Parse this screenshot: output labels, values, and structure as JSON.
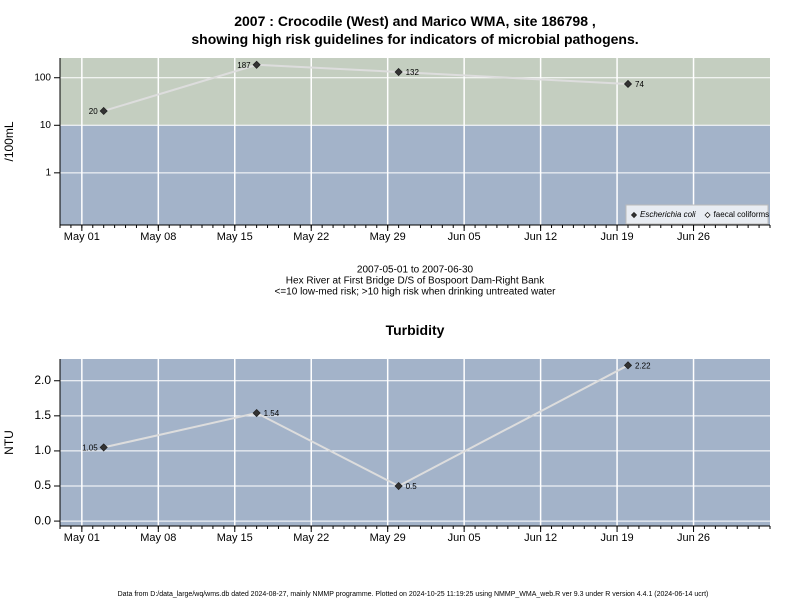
{
  "chart_data": [
    {
      "type": "line",
      "title": "2007 : Crocodile (West) and Marico WMA, site 186798 ,\nshowing high risk guidelines for indicators of microbial pathogens.",
      "ylabel": "/100mL",
      "log": true,
      "grid": true,
      "threshold": 10,
      "high_risk_color": "#c4cec0",
      "low_risk_color": "#a3b3c9",
      "notes": [
        "2007-05-01 to 2007-06-30",
        "Hex River at First Bridge D/S of Bospoort Dam-Right Bank",
        "<=10 low-med risk; >10 high risk when drinking untreated water"
      ],
      "x": [
        "2007-05-03",
        "2007-05-17",
        "2007-05-30",
        "2007-06-20"
      ],
      "xlim": [
        "2007-04-29",
        "2007-07-03"
      ],
      "xticks": [
        {
          "value": "2007-05-01",
          "label": "May 01"
        },
        {
          "value": "2007-05-08",
          "label": "May 08"
        },
        {
          "value": "2007-05-15",
          "label": "May 15"
        },
        {
          "value": "2007-05-22",
          "label": "May 22"
        },
        {
          "value": "2007-05-29",
          "label": "May 29"
        },
        {
          "value": "2007-06-05",
          "label": "Jun 05"
        },
        {
          "value": "2007-06-12",
          "label": "Jun 12"
        },
        {
          "value": "2007-06-19",
          "label": "Jun 19"
        },
        {
          "value": "2007-06-26",
          "label": "Jun 26"
        }
      ],
      "ylim": [
        0.08,
        260
      ],
      "yticks": [
        1,
        10,
        100
      ],
      "legend": "bottom right",
      "series": [
        {
          "name": "Escherichia coli",
          "color": "#333333",
          "line_color": "#dddddd",
          "values": [
            20,
            187,
            132,
            74
          ]
        },
        {
          "name": "faecal coliforms",
          "color": "#ffffff",
          "line_color": "#dddddd",
          "values": [
            null,
            null,
            null,
            null
          ]
        }
      ]
    },
    {
      "type": "line",
      "title": "Turbidity",
      "ylabel": "NTU",
      "log": false,
      "grid": true,
      "background": "#a3b3c9",
      "x": [
        "2007-05-03",
        "2007-05-17",
        "2007-05-30",
        "2007-06-20"
      ],
      "xlim": [
        "2007-04-29",
        "2007-07-03"
      ],
      "xticks": [
        {
          "value": "2007-05-01",
          "label": "May 01"
        },
        {
          "value": "2007-05-08",
          "label": "May 08"
        },
        {
          "value": "2007-05-15",
          "label": "May 15"
        },
        {
          "value": "2007-05-22",
          "label": "May 22"
        },
        {
          "value": "2007-05-29",
          "label": "May 29"
        },
        {
          "value": "2007-06-05",
          "label": "Jun 05"
        },
        {
          "value": "2007-06-12",
          "label": "Jun 12"
        },
        {
          "value": "2007-06-19",
          "label": "Jun 19"
        },
        {
          "value": "2007-06-26",
          "label": "Jun 26"
        }
      ],
      "ylim": [
        -0.07,
        2.31
      ],
      "yticks": [
        {
          "value": 0,
          "label": "0.0"
        },
        0.5,
        {
          "value": 1,
          "label": "1.0"
        },
        1.5,
        {
          "value": 2,
          "label": "2.0"
        }
      ],
      "series": [
        {
          "name": "Turbidity",
          "color": "#333333",
          "line_color": "#dddddd",
          "values": [
            1.05,
            1.54,
            0.5,
            2.22
          ]
        }
      ]
    }
  ],
  "footer": "Data from D:/data_large/wq/wms.db dated 2024-08-27, mainly NMMP programme. Plotted on 2024-10-25 11:19:25 using NMMP_WMA_web.R ver 9.3 under R version 4.4.1 (2024-06-14 ucrt)"
}
